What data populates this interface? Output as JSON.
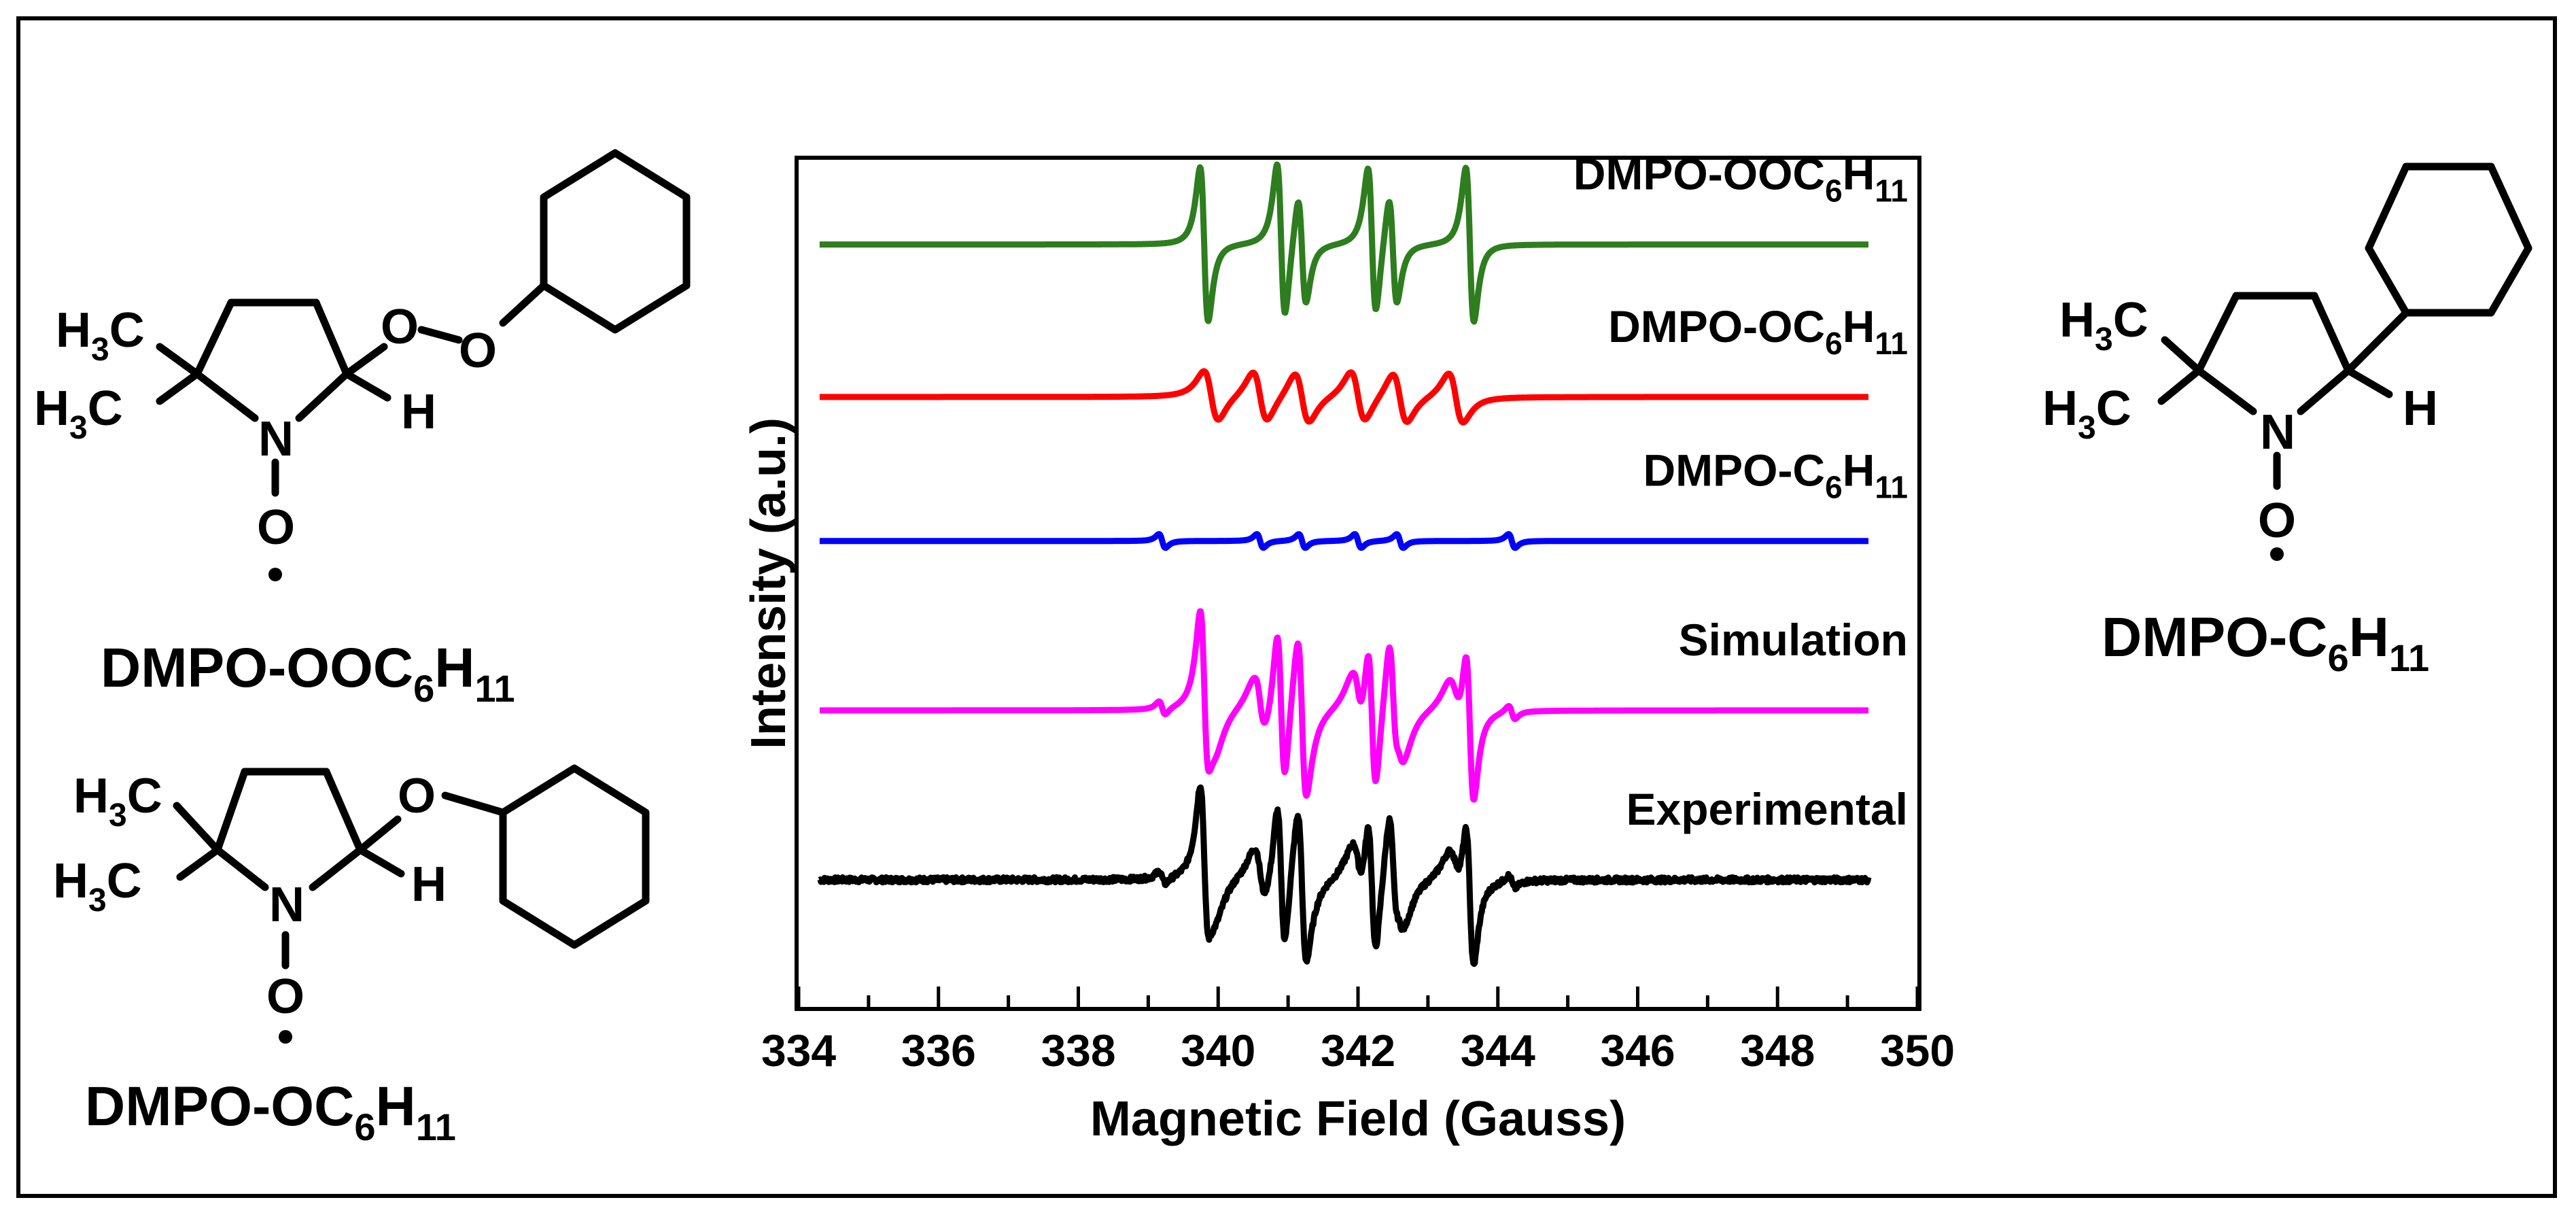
{
  "figure": {
    "structures": [
      {
        "id": "ooc6h11",
        "name_parts": [
          "DMPO-OOC",
          "6",
          "H",
          "11"
        ],
        "labels": {
          "methyl_upper": [
            "H",
            "3",
            "C"
          ],
          "methyl_lower": [
            "H",
            "3",
            "C"
          ],
          "n": "N",
          "o_ring": "O",
          "h": "H",
          "o1": "O",
          "o2": "O"
        }
      },
      {
        "id": "oc6h11",
        "name_parts": [
          "DMPO-OC",
          "6",
          "H",
          "11"
        ],
        "labels": {
          "methyl_upper": [
            "H",
            "3",
            "C"
          ],
          "methyl_lower": [
            "H",
            "3",
            "C"
          ],
          "n": "N",
          "o_ring": "O",
          "h": "H",
          "o1": "O"
        }
      },
      {
        "id": "c6h11",
        "name_parts": [
          "DMPO-C",
          "6",
          "H",
          "11"
        ],
        "labels": {
          "methyl_upper": [
            "H",
            "3",
            "C"
          ],
          "methyl_lower": [
            "H",
            "3",
            "C"
          ],
          "n": "N",
          "o_ring": "O",
          "h": "H"
        }
      }
    ]
  },
  "chart_data": {
    "type": "line",
    "title": "",
    "xlabel": "Magnetic Field (Gauss)",
    "ylabel": "Intensity (a.u.)",
    "xlim": [
      334,
      350
    ],
    "xticks": [
      "334",
      "336",
      "338",
      "340",
      "342",
      "344",
      "346",
      "348",
      "350"
    ],
    "x_minor_step": 1,
    "x_range_plotted": [
      334.3,
      349.3
    ],
    "y_ticks_shown": false,
    "series": [
      {
        "name": "DMPO-OOC6H11",
        "label_parts": [
          "DMPO-OOC",
          "6",
          "H",
          "11"
        ],
        "color": "#2e7d1f",
        "baseline": 90,
        "lines": [
          {
            "center": 339.8,
            "amp": 1.0
          },
          {
            "center": 340.9,
            "amp": 1.0
          },
          {
            "center": 341.2,
            "amp": 0.7
          },
          {
            "center": 342.2,
            "amp": 0.95
          },
          {
            "center": 342.5,
            "amp": 0.7
          },
          {
            "center": 343.6,
            "amp": 1.0
          }
        ],
        "linewidth": 0.1,
        "scale": 28
      },
      {
        "name": "DMPO-OC6H11",
        "label_parts": [
          "DMPO-OC",
          "6",
          "H",
          "11"
        ],
        "color": "#ff0000",
        "baseline": 72,
        "lines": [
          {
            "center": 339.9,
            "amp": 1.0
          },
          {
            "center": 340.6,
            "amp": 1.0
          },
          {
            "center": 341.2,
            "amp": 1.0
          },
          {
            "center": 342.0,
            "amp": 1.0
          },
          {
            "center": 342.6,
            "amp": 1.0
          },
          {
            "center": 343.4,
            "amp": 1.0
          }
        ],
        "linewidth": 0.18,
        "scale": 9
      },
      {
        "name": "DMPO-C6H11",
        "label_parts": [
          "DMPO-C",
          "6",
          "H",
          "11"
        ],
        "color": "#0000ff",
        "baseline": 55,
        "lines": [
          {
            "center": 339.2,
            "amp": 1.0
          },
          {
            "center": 340.6,
            "amp": 1.0
          },
          {
            "center": 341.2,
            "amp": 1.0
          },
          {
            "center": 342.0,
            "amp": 1.0
          },
          {
            "center": 342.6,
            "amp": 1.0
          },
          {
            "center": 344.2,
            "amp": 1.0
          }
        ],
        "linewidth": 0.08,
        "scale": 2.5
      },
      {
        "name": "Simulation",
        "label_parts": [
          "Simulation"
        ],
        "color": "#ff00ff",
        "baseline": 35,
        "composite_of": [
          "DMPO-OOC6H11",
          "DMPO-OC6H11",
          "DMPO-C6H11"
        ],
        "scale": 1.0
      },
      {
        "name": "Experimental",
        "label_parts": [
          "Experimental"
        ],
        "color": "#000000",
        "baseline": 15,
        "composite_of": [
          "DMPO-OOC6H11",
          "DMPO-OC6H11",
          "DMPO-C6H11"
        ],
        "scale": 0.95,
        "noise": 0.6
      }
    ],
    "ylim": [
      0,
      100
    ],
    "legend": "labels above each trace, right-aligned"
  }
}
